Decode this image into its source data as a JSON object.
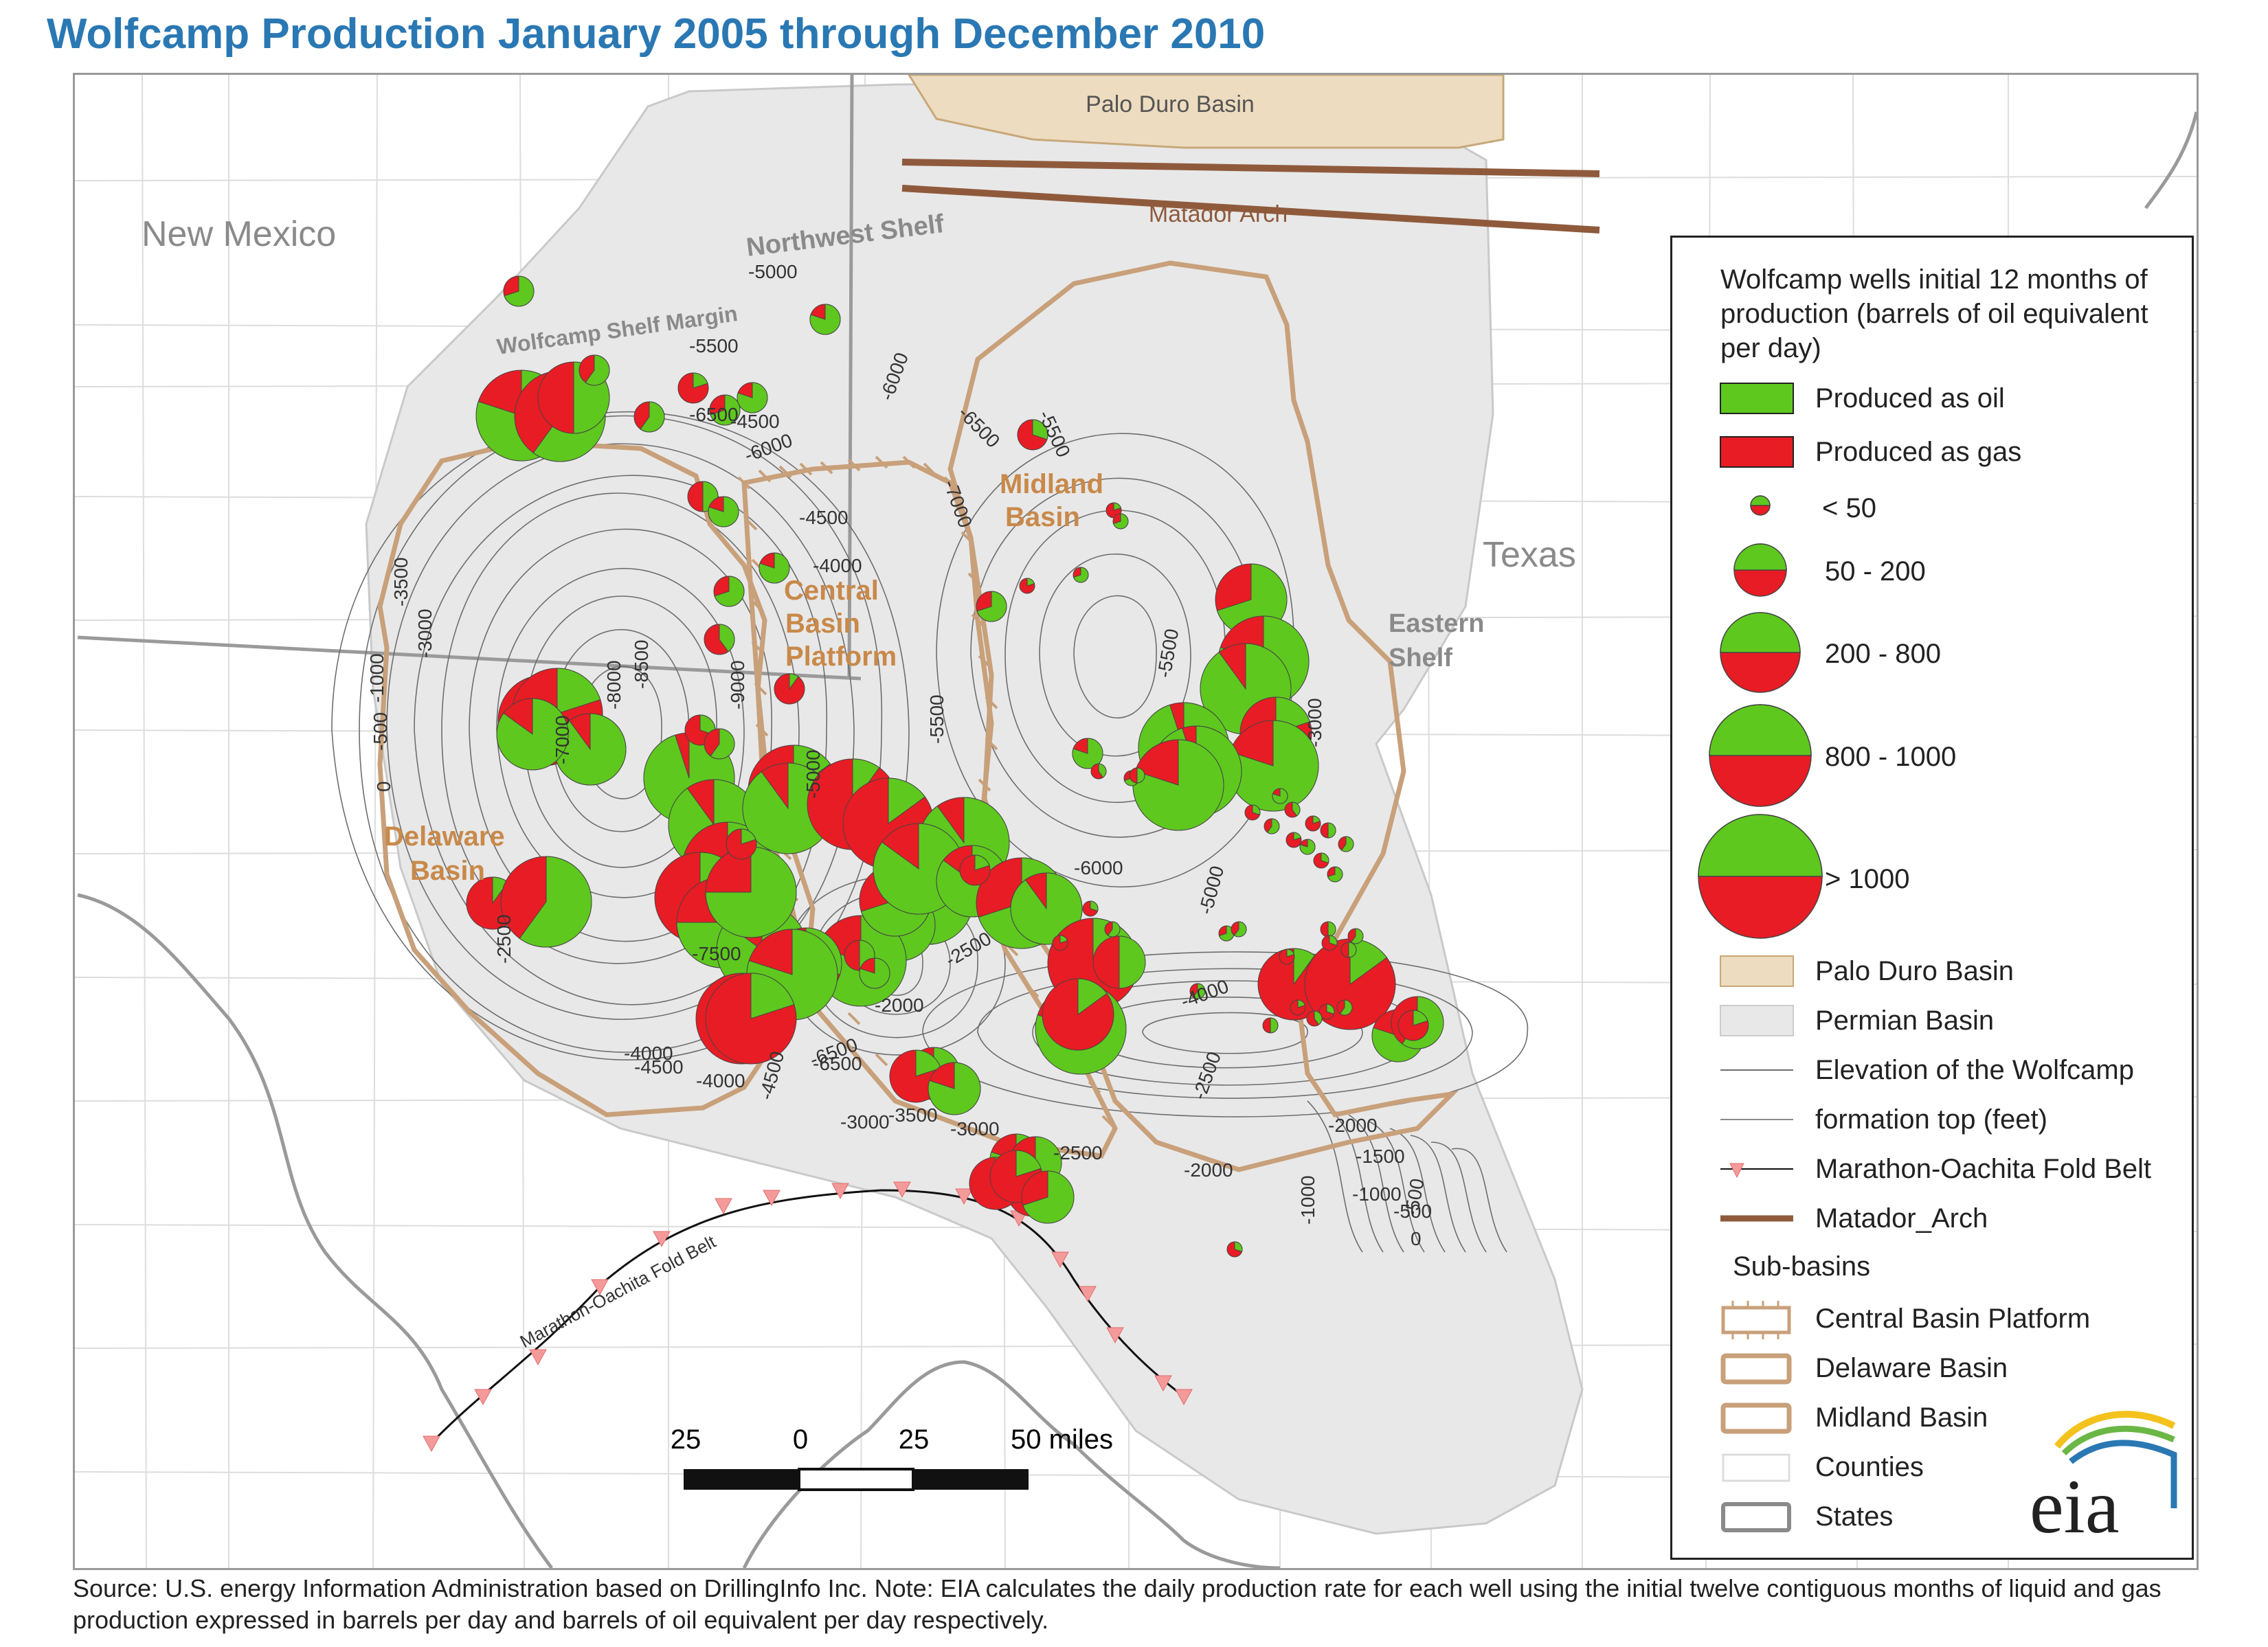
{
  "title": "Wolfcamp Production January 2005 through December 2010",
  "map_labels": {
    "palo_duro": "Palo Duro Basin",
    "matador": "Matador Arch",
    "new_mexico": "New Mexico",
    "texas": "Texas",
    "northwest_shelf": "Northwest Shelf",
    "wolfcamp_shelf_margin": "Wolfcamp Shelf Margin",
    "midland_basin": [
      "Midland",
      "Basin"
    ],
    "central_basin_platform": [
      "Central",
      "Basin",
      "Platform"
    ],
    "delaware_basin": [
      "Delaware",
      "Basin"
    ],
    "eastern_shelf": [
      "Eastern",
      "Shelf"
    ],
    "fold_belt": "Marathon-Oachita Fold Belt"
  },
  "contour_labels": [
    "-5000",
    "-5500",
    "-4000",
    "-6500",
    "-5500",
    "-6000",
    "-7000",
    "-6000",
    "-4500",
    "-4000",
    "-6500",
    "-3500",
    "-3000",
    "-1000",
    "-500",
    "0",
    "-7000",
    "-8500",
    "-8000",
    "-9000",
    "-5000",
    "-5500",
    "-4500",
    "-6500",
    "-7500",
    "-2500",
    "-4500",
    "-4000",
    "-4500",
    "-6500",
    "-3000",
    "-3500",
    "-3000",
    "-2500",
    "-2000",
    "-2500",
    "-6000",
    "-5000",
    "-4000",
    "-2500",
    "-2000",
    "-2000",
    "-1500",
    "-1000",
    "-500",
    "-1000",
    "-500",
    "0",
    "-5500",
    "-3000"
  ],
  "scale_bar": {
    "labels": [
      "25",
      "0",
      "25",
      "50 miles"
    ]
  },
  "legend": {
    "title": "Wolfcamp wells initial 12 months of production (barrels of oil equivalent per day)",
    "oil": "Produced as oil",
    "gas": "Produced as gas",
    "sizes": [
      "< 50",
      "50 - 200",
      "200 - 800",
      "800 - 1000",
      "> 1000"
    ],
    "palo_duro": "Palo Duro Basin",
    "permian": "Permian Basin",
    "elevation_1": "Elevation of the Wolfcamp",
    "elevation_2": "formation top (feet)",
    "fold_belt": "Marathon-Oachita Fold Belt",
    "matador": "Matador_Arch",
    "sub_basins": "Sub-basins",
    "cbp": "Central Basin Platform",
    "delaware": "Delaware Basin",
    "midland": "Midland Basin",
    "counties": "Counties",
    "states": "States"
  },
  "logo": "eia",
  "source": "Source: U.S. energy Information Administration based on DrillingInfo Inc.  Note: EIA calculates the daily production rate for each well using the initial twelve contiguous months of liquid and gas production expressed in barrels per day and barrels of oil equivalent per day respectively.",
  "colors": {
    "oil": "#5ec81e",
    "gas": "#e81c24",
    "palo_duro": "#eddcc0",
    "permian": "#e8e8e8",
    "subbasin": "#c8a07a",
    "matador": "#8f5a3c",
    "title": "#2a78b3",
    "label_brown": "#c8894a",
    "state_line": "#9a9a9a"
  },
  "wells": [
    {
      "name": "w1",
      "oil_share": 0.7,
      "size": "50 - 200"
    },
    {
      "name": "w2",
      "oil_share": 0.8,
      "size": "> 1000"
    },
    {
      "name": "w3",
      "oil_share": 0.6,
      "size": "> 1000"
    },
    {
      "name": "w4",
      "oil_share": 0.5,
      "size": "800 - 1000"
    },
    {
      "name": "w5",
      "oil_share": 0.3,
      "size": "> 1000"
    },
    {
      "name": "w6",
      "oil_share": 0.2,
      "size": "> 1000"
    },
    {
      "name": "w7",
      "oil_share": 0.9,
      "size": "800 - 1000"
    },
    {
      "name": "w8",
      "oil_share": 0.85,
      "size": "800 - 1000"
    },
    {
      "name": "w9",
      "oil_share": 0.1,
      "size": "200 - 800"
    },
    {
      "name": "w10",
      "oil_share": 0.6,
      "size": "> 1000"
    },
    {
      "name": "w11",
      "oil_share": 0.95,
      "size": "> 1000"
    },
    {
      "name": "w12",
      "oil_share": 0.9,
      "size": "> 1000"
    },
    {
      "name": "w13",
      "oil_share": 0.8,
      "size": "> 1000"
    },
    {
      "name": "w14",
      "oil_share": 0.4,
      "size": "> 1000"
    },
    {
      "name": "w15",
      "oil_share": 0.75,
      "size": "> 1000"
    },
    {
      "name": "w16",
      "oil_share": 0.85,
      "size": "> 1000"
    },
    {
      "name": "w17",
      "oil_share": 0.75,
      "size": "> 1000"
    },
    {
      "name": "w18",
      "oil_share": 0.15,
      "size": "> 1000"
    },
    {
      "name": "w19",
      "oil_share": 0.9,
      "size": "> 1000"
    },
    {
      "name": "w20",
      "oil_share": 0.1,
      "size": "> 1000"
    },
    {
      "name": "w21",
      "oil_share": 0.15,
      "size": "> 1000"
    },
    {
      "name": "w22",
      "oil_share": 0.6,
      "size": "> 1000"
    },
    {
      "name": "w23",
      "oil_share": 0.95,
      "size": "800 - 1000"
    },
    {
      "name": "w24",
      "oil_share": 0.8,
      "size": "> 1000"
    },
    {
      "name": "w25",
      "oil_share": 0.7,
      "size": "800 - 1000"
    },
    {
      "name": "w26",
      "oil_share": 0.9,
      "size": "> 1000"
    },
    {
      "name": "w27",
      "oil_share": 0.85,
      "size": "> 1000"
    },
    {
      "name": "w28",
      "oil_share": 0.3,
      "size": "800 - 1000"
    },
    {
      "name": "w29",
      "oil_share": 0.8,
      "size": "> 1000"
    },
    {
      "name": "w30",
      "oil_share": 0.1,
      "size": "> 1000"
    },
    {
      "name": "w31",
      "oil_share": 0.2,
      "size": "> 1000"
    },
    {
      "name": "w32",
      "oil_share": 0.85,
      "size": "800 - 1000"
    },
    {
      "name": "w33",
      "oil_share": 0.7,
      "size": "> 1000"
    },
    {
      "name": "w34",
      "oil_share": 0.9,
      "size": "800 - 1000"
    },
    {
      "name": "w35",
      "oil_share": 0.3,
      "size": "> 1000"
    },
    {
      "name": "w36",
      "oil_share": 0.8,
      "size": "> 1000"
    },
    {
      "name": "w37",
      "oil_share": 0.15,
      "size": "800 - 1000"
    },
    {
      "name": "w38",
      "oil_share": 0.7,
      "size": "800 - 1000"
    },
    {
      "name": "w39",
      "oil_share": 0.8,
      "size": "> 1000"
    },
    {
      "name": "w40",
      "oil_share": 0.9,
      "size": "> 1000"
    },
    {
      "name": "w41",
      "oil_share": 0.2,
      "size": "800 - 1000"
    },
    {
      "name": "w42",
      "oil_share": 0.8,
      "size": "> 1000"
    },
    {
      "name": "w43",
      "oil_share": 0.95,
      "size": "> 1000"
    },
    {
      "name": "w44",
      "oil_share": 0.95,
      "size": "> 1000"
    },
    {
      "name": "w45",
      "oil_share": 0.8,
      "size": "> 1000"
    },
    {
      "name": "w46",
      "oil_share": 0.5,
      "size": "200 - 800"
    },
    {
      "name": "w47",
      "oil_share": 0.1,
      "size": "800 - 1000"
    },
    {
      "name": "w48",
      "oil_share": 0.15,
      "size": "> 1000"
    },
    {
      "name": "w49",
      "oil_share": 0.9,
      "size": "200 - 800"
    },
    {
      "name": "w50",
      "oil_share": 0.2,
      "size": "200 - 800"
    },
    {
      "name": "w51",
      "oil_share": 0.8,
      "size": "200 - 800"
    },
    {
      "name": "w52",
      "oil_share": 0.8,
      "size": "200 - 800"
    },
    {
      "name": "w53",
      "oil_share": 0.3,
      "size": "200 - 800"
    },
    {
      "name": "w54",
      "oil_share": 0.2,
      "size": "200 - 800"
    },
    {
      "name": "w55",
      "oil_share": 0.75,
      "size": "200 - 800"
    },
    {
      "name": "w56",
      "oil_share": 0.2,
      "size": "200 - 800"
    },
    {
      "name": "w57",
      "oil_share": 0.7,
      "size": "200 - 800"
    },
    {
      "name": "w58",
      "oil_share": 0.8,
      "size": "200 - 800"
    },
    {
      "name": "w59",
      "oil_share": 0.6,
      "size": "200 - 800"
    },
    {
      "name": "w60",
      "oil_share": 0.8,
      "size": "50 - 200"
    },
    {
      "name": "w61",
      "oil_share": 0.2,
      "size": "50 - 200"
    },
    {
      "name": "w62",
      "oil_share": 0.6,
      "size": "50 - 200"
    },
    {
      "name": "w63",
      "oil_share": 0.2,
      "size": "50 - 200"
    },
    {
      "name": "w64",
      "oil_share": 0.6,
      "size": "50 - 200"
    },
    {
      "name": "w65",
      "oil_share": 0.7,
      "size": "50 - 200"
    },
    {
      "name": "w66",
      "oil_share": 0.8,
      "size": "50 - 200"
    },
    {
      "name": "w67",
      "oil_share": 0.5,
      "size": "50 - 200"
    },
    {
      "name": "w68",
      "oil_share": 0.8,
      "size": "50 - 200"
    },
    {
      "name": "w69",
      "oil_share": 0.4,
      "size": "50 - 200"
    },
    {
      "name": "w70",
      "oil_share": 0.7,
      "size": "50 - 200"
    },
    {
      "name": "w71",
      "oil_share": 0.8,
      "size": "50 - 200"
    },
    {
      "name": "w72",
      "oil_share": 0.1,
      "size": "50 - 200"
    },
    {
      "name": "w73",
      "oil_share": 0.3,
      "size": "50 - 200"
    },
    {
      "name": "w74",
      "oil_share": 0.6,
      "size": "50 - 200"
    },
    {
      "name": "w75",
      "oil_share": 0.2,
      "size": "50 - 200"
    },
    {
      "name": "w76",
      "oil_share": 0.5,
      "size": "50 - 200"
    },
    {
      "name": "w77",
      "oil_share": 0.8,
      "size": "50 - 200"
    },
    {
      "name": "w78",
      "oil_share": 0.2,
      "size": "50 - 200"
    },
    {
      "name": "w79",
      "oil_share": 0.8,
      "size": "50 - 200"
    },
    {
      "name": "w80",
      "oil_share": 0.3,
      "size": "50 - 200"
    },
    {
      "name": "w81",
      "oil_share": 0.7,
      "size": "50 - 200"
    },
    {
      "name": "w82",
      "oil_share": 0.2,
      "size": "< 50"
    },
    {
      "name": "w83",
      "oil_share": 0.7,
      "size": "< 50"
    },
    {
      "name": "w84",
      "oil_share": 0.3,
      "size": "< 50"
    },
    {
      "name": "w85",
      "oil_share": 0.6,
      "size": "< 50"
    },
    {
      "name": "w86",
      "oil_share": 0.2,
      "size": "< 50"
    },
    {
      "name": "w87",
      "oil_share": 0.6,
      "size": "< 50"
    },
    {
      "name": "w88",
      "oil_share": 0.5,
      "size": "< 50"
    },
    {
      "name": "w89",
      "oil_share": 0.2,
      "size": "< 50"
    },
    {
      "name": "w90",
      "oil_share": 0.3,
      "size": "< 50"
    },
    {
      "name": "w91",
      "oil_share": 0.6,
      "size": "< 50"
    },
    {
      "name": "w92",
      "oil_share": 0.4,
      "size": "< 50"
    },
    {
      "name": "w93",
      "oil_share": 0.7,
      "size": "< 50"
    },
    {
      "name": "w94",
      "oil_share": 0.6,
      "size": "< 50"
    },
    {
      "name": "w95",
      "oil_share": 0.2,
      "size": "< 50"
    },
    {
      "name": "w96",
      "oil_share": 0.5,
      "size": "< 50"
    },
    {
      "name": "w97",
      "oil_share": 0.3,
      "size": "< 50"
    },
    {
      "name": "w98",
      "oil_share": 0.6,
      "size": "< 50"
    },
    {
      "name": "w99",
      "oil_share": 0.5,
      "size": "< 50"
    },
    {
      "name": "w100",
      "oil_share": 0.2,
      "size": "< 50"
    },
    {
      "name": "w101",
      "oil_share": 0.7,
      "size": "< 50"
    },
    {
      "name": "w102",
      "oil_share": 0.4,
      "size": "< 50"
    },
    {
      "name": "w103",
      "oil_share": 0.7,
      "size": "< 50"
    },
    {
      "name": "w104",
      "oil_share": 0.5,
      "size": "< 50"
    },
    {
      "name": "w105",
      "oil_share": 0.3,
      "size": "< 50"
    },
    {
      "name": "w106",
      "oil_share": 0.6,
      "size": "< 50"
    },
    {
      "name": "w107",
      "oil_share": 0.2,
      "size": "< 50"
    },
    {
      "name": "w108",
      "oil_share": 0.8,
      "size": "< 50"
    },
    {
      "name": "w109",
      "oil_share": 0.3,
      "size": "< 50"
    },
    {
      "name": "w110",
      "oil_share": 0.7,
      "size": "< 50"
    },
    {
      "name": "w111",
      "oil_share": 0.8,
      "size": "< 50"
    },
    {
      "name": "w112",
      "oil_share": 0.4,
      "size": "< 50"
    },
    {
      "name": "w113",
      "oil_share": 0.2,
      "size": "< 50"
    },
    {
      "name": "w114",
      "oil_share": 0.5,
      "size": "< 50"
    },
    {
      "name": "w115",
      "oil_share": 0.6,
      "size": "< 50"
    },
    {
      "name": "w116",
      "oil_share": 0.3,
      "size": "< 50"
    }
  ]
}
